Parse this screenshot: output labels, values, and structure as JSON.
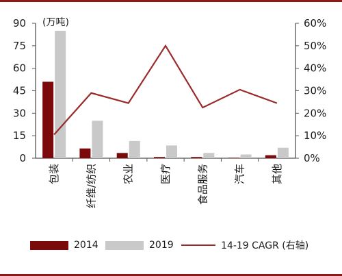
{
  "chart_data": {
    "type": "bar",
    "title": "",
    "unit_label": "(万吨)",
    "xlabel": "",
    "ylabel": "",
    "categories": [
      "包装",
      "纤维/纺织",
      "农业",
      "医疗",
      "食品服务",
      "汽车",
      "其他"
    ],
    "series": [
      {
        "name": "2014",
        "type": "bar",
        "axis": "left",
        "color": "#7b0a0a",
        "values": [
          51,
          6.5,
          3.5,
          0.8,
          0.8,
          0.3,
          2.0
        ]
      },
      {
        "name": "2019",
        "type": "bar",
        "axis": "left",
        "color": "#c9c9c9",
        "values": [
          85,
          25,
          11.5,
          8.5,
          3.5,
          2.5,
          7.0
        ]
      },
      {
        "name": "14-19 CAGR (右轴)",
        "type": "line",
        "axis": "right",
        "color": "#9b2a2a",
        "values": [
          10.5,
          29,
          24.5,
          50,
          22.5,
          30.5,
          24.5
        ]
      }
    ],
    "y_left": {
      "lim": [
        0,
        90
      ],
      "ticks": [
        "0",
        "15",
        "30",
        "45",
        "60",
        "75",
        "90"
      ]
    },
    "y_right": {
      "lim": [
        0,
        60
      ],
      "ticks": [
        "0%",
        "10%",
        "20%",
        "30%",
        "40%",
        "50%",
        "60%"
      ]
    },
    "grid": false,
    "legend_position": "bottom"
  },
  "colors": {
    "accent_rule": "#8b1a1a",
    "axis": "#555555"
  }
}
